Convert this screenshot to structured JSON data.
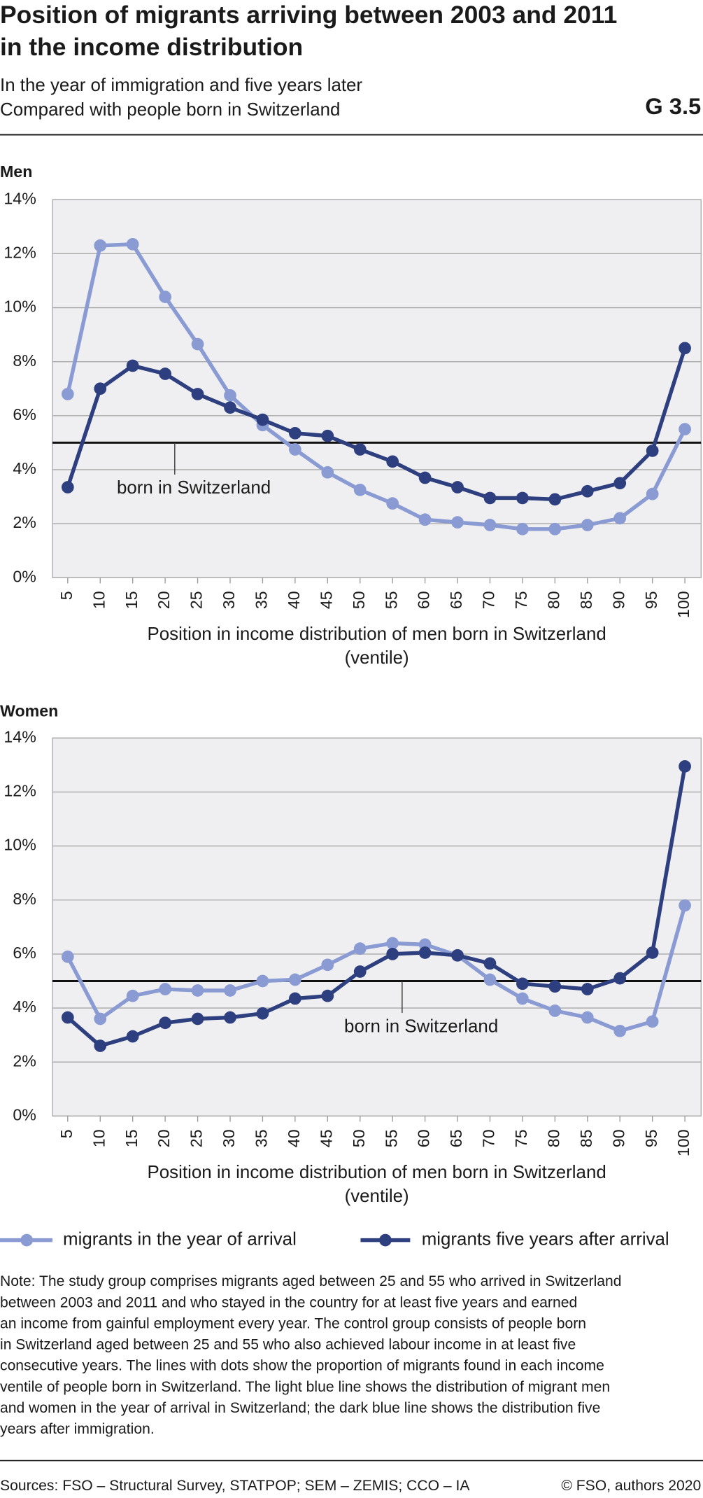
{
  "header": {
    "title": [
      "Position of migrants arriving between 2003 and 2011",
      "in the income distribution"
    ],
    "subtitle": [
      "In the year of immigration and five years later",
      "Compared with people born in Switzerland"
    ],
    "code": "G 3.5"
  },
  "chart_data": [
    {
      "type": "line",
      "title": "Men",
      "categories": [
        "5",
        "10",
        "15",
        "20",
        "25",
        "30",
        "35",
        "40",
        "45",
        "50",
        "55",
        "60",
        "65",
        "70",
        "75",
        "80",
        "85",
        "90",
        "95",
        "100"
      ],
      "xlabel": [
        "Position in income distribution of men born in Switzerland",
        "(ventile)"
      ],
      "ylim": [
        0,
        14
      ],
      "yticks": [
        {
          "value": 0,
          "label": "0%"
        },
        {
          "value": 2,
          "label": "2%"
        },
        {
          "value": 4,
          "label": "4%"
        },
        {
          "value": 6,
          "label": "6%"
        },
        {
          "value": 8,
          "label": "8%"
        },
        {
          "value": 10,
          "label": "10%"
        },
        {
          "value": 12,
          "label": "12%"
        },
        {
          "value": 14,
          "label": "14%"
        }
      ],
      "grid": true,
      "reference": {
        "value": 5,
        "label": "born in Switzerland"
      },
      "series": [
        {
          "name": "migrants in the year of arrival",
          "color": "#8a9bd4",
          "values": [
            6.8,
            12.3,
            12.35,
            10.4,
            8.65,
            6.75,
            5.65,
            4.75,
            3.9,
            3.25,
            2.75,
            2.15,
            2.05,
            1.95,
            1.8,
            1.8,
            1.95,
            2.2,
            3.1,
            5.5
          ]
        },
        {
          "name": "migrants five years after arrival",
          "color": "#2e3f7f",
          "values": [
            3.35,
            7.0,
            7.85,
            7.55,
            6.8,
            6.3,
            5.85,
            5.35,
            5.25,
            4.75,
            4.3,
            3.7,
            3.35,
            2.95,
            2.95,
            2.9,
            3.2,
            3.5,
            4.7,
            8.5
          ]
        }
      ]
    },
    {
      "type": "line",
      "title": "Women",
      "categories": [
        "5",
        "10",
        "15",
        "20",
        "25",
        "30",
        "35",
        "40",
        "45",
        "50",
        "55",
        "60",
        "65",
        "70",
        "75",
        "80",
        "85",
        "90",
        "95",
        "100"
      ],
      "xlabel": [
        "Position in income distribution of men born in Switzerland",
        "(ventile)"
      ],
      "ylim": [
        0,
        14
      ],
      "yticks": [
        {
          "value": 0,
          "label": "0%"
        },
        {
          "value": 2,
          "label": "2%"
        },
        {
          "value": 4,
          "label": "4%"
        },
        {
          "value": 6,
          "label": "6%"
        },
        {
          "value": 8,
          "label": "8%"
        },
        {
          "value": 10,
          "label": "10%"
        },
        {
          "value": 12,
          "label": "12%"
        },
        {
          "value": 14,
          "label": "14%"
        }
      ],
      "grid": true,
      "reference": {
        "value": 5,
        "label": "born in Switzerland"
      },
      "series": [
        {
          "color": "#8a9bd4",
          "values": [
            5.9,
            3.6,
            4.45,
            4.7,
            4.65,
            4.65,
            5.0,
            5.05,
            5.6,
            6.2,
            6.4,
            6.35,
            5.95,
            5.05,
            4.35,
            3.9,
            3.65,
            3.15,
            3.5,
            7.8
          ]
        },
        {
          "color": "#2e3f7f",
          "values": [
            3.65,
            2.6,
            2.95,
            3.45,
            3.6,
            3.65,
            3.8,
            4.35,
            4.45,
            5.35,
            6.0,
            6.05,
            5.95,
            5.65,
            4.9,
            4.8,
            4.7,
            5.1,
            6.05,
            12.95
          ]
        }
      ]
    }
  ],
  "note": [
    "Note: The study group comprises migrants aged between 25 and 55 who arrived in Switzerland",
    "between 2003 and 2011 and who stayed in the country for at least five years and earned",
    "an income from gainful employment every year. The control group consists of people born",
    "in Switzerland aged between 25 and 55 who also achieved labour income in at least five",
    "consecutive years. The lines with dots show the proportion of migrants found in each income",
    "ventile of people born in Switzerland. The light blue line shows the distribution of migrant men",
    "and women in the year of arrival in Switzerland; the dark blue line shows the distribution five",
    "years after immigration."
  ],
  "footer": {
    "sources": "Sources: FSO – Structural Survey, STATPOP; SEM – ZEMIS; CCO – IA",
    "copyright": "© FSO, authors 2020"
  }
}
